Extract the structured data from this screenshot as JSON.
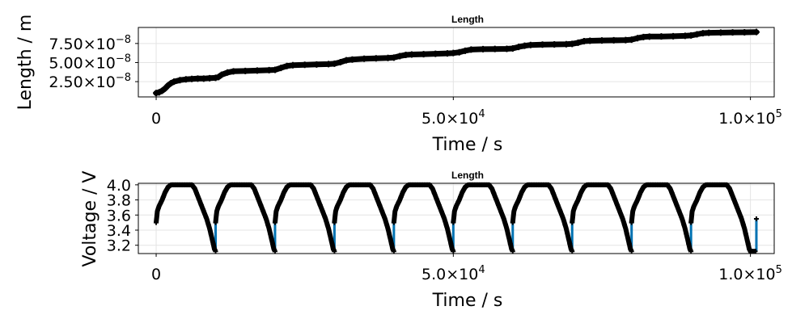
{
  "chart_data": [
    {
      "type": "line",
      "title": "Length",
      "xlabel": "Time / s",
      "ylabel": "Length / m",
      "xlim": [
        -3000,
        104000
      ],
      "ylim": [
        5e-09,
        9.6e-08
      ],
      "x_ticks": [
        0,
        50000,
        100000
      ],
      "x_tick_labels": [
        [
          "0",
          ""
        ],
        [
          "5.0×10",
          "4"
        ],
        [
          "1.0×10",
          "5"
        ]
      ],
      "y_ticks": [
        2.5e-08,
        5e-08,
        7.5e-08
      ],
      "y_tick_labels": [
        [
          "2.50×10",
          "−8"
        ],
        [
          "5.00×10",
          "−8"
        ],
        [
          "7.50×10",
          "−8"
        ]
      ],
      "grid": true,
      "series": [
        {
          "color": "#000000",
          "marker": "plus",
          "x": [
            0,
            500,
            1000,
            1500,
            2000,
            2500,
            3000,
            4000,
            5000,
            6000,
            7000,
            8000,
            9000,
            10000,
            10500,
            11000,
            12000,
            13000,
            15000,
            17000,
            19000,
            20000,
            21000,
            22000,
            23000,
            25000,
            27000,
            29000,
            30000,
            31000,
            32000,
            33000,
            35000,
            37000,
            39000,
            40000,
            41000,
            42000,
            43000,
            45000,
            47000,
            49000,
            50000,
            51000,
            52000,
            53000,
            55000,
            57000,
            59000,
            60000,
            61000,
            62000,
            63000,
            65000,
            67000,
            69000,
            70000,
            71000,
            72000,
            73000,
            75000,
            77000,
            79000,
            80000,
            81000,
            82000,
            83000,
            85000,
            87000,
            89000,
            90000,
            91000,
            92000,
            93000,
            95000,
            97000,
            99000,
            101000
          ],
          "y": [
            1e-08,
            1.1e-08,
            1.3e-08,
            1.6e-08,
            2e-08,
            2.3e-08,
            2.5e-08,
            2.7e-08,
            2.8e-08,
            2.85e-08,
            2.9e-08,
            2.9e-08,
            2.95e-08,
            3e-08,
            3.1e-08,
            3.4e-08,
            3.7e-08,
            3.85e-08,
            3.9e-08,
            3.95e-08,
            4e-08,
            4.05e-08,
            4.3e-08,
            4.55e-08,
            4.65e-08,
            4.7e-08,
            4.75e-08,
            4.8e-08,
            4.85e-08,
            5.05e-08,
            5.3e-08,
            5.4e-08,
            5.5e-08,
            5.55e-08,
            5.6e-08,
            5.65e-08,
            5.85e-08,
            6e-08,
            6.05e-08,
            6.1e-08,
            6.15e-08,
            6.2e-08,
            6.25e-08,
            6.35e-08,
            6.55e-08,
            6.7e-08,
            6.75e-08,
            6.78e-08,
            6.8e-08,
            6.85e-08,
            7.05e-08,
            7.2e-08,
            7.3e-08,
            7.35e-08,
            7.38e-08,
            7.4e-08,
            7.45e-08,
            7.6e-08,
            7.8e-08,
            7.85e-08,
            7.9e-08,
            7.92e-08,
            7.95e-08,
            8e-08,
            8.2e-08,
            8.35e-08,
            8.4e-08,
            8.42e-08,
            8.45e-08,
            8.5e-08,
            8.55e-08,
            8.7e-08,
            8.85e-08,
            8.9e-08,
            8.92e-08,
            8.95e-08,
            8.97e-08,
            9e-08
          ]
        }
      ]
    },
    {
      "type": "line",
      "title": "Length",
      "xlabel": "Time / s",
      "ylabel": "Voltage / V",
      "xlim": [
        -3000,
        104000
      ],
      "ylim": [
        3.09,
        4.02
      ],
      "x_ticks": [
        0,
        50000,
        100000
      ],
      "x_tick_labels": [
        [
          "0",
          ""
        ],
        [
          "5.0×10",
          "4"
        ],
        [
          "1.0×10",
          "5"
        ]
      ],
      "y_ticks": [
        3.2,
        3.4,
        3.6,
        3.8,
        4.0
      ],
      "y_tick_labels": [
        [
          "3.2",
          ""
        ],
        [
          "3.4",
          ""
        ],
        [
          "3.6",
          ""
        ],
        [
          "3.8",
          ""
        ],
        [
          "4.0",
          ""
        ]
      ],
      "grid": true,
      "cycle_period": 10000,
      "cycles": 10,
      "last_cycle_end": 101000,
      "line_color": "#0072b2",
      "marker_color": "#000000",
      "cycle_profile": {
        "t": [
          0,
          200,
          500,
          1000,
          1500,
          2000,
          2500,
          3000,
          5000,
          6000,
          6500,
          7000,
          7500,
          8000,
          8500,
          9000,
          9300,
          9600,
          9800,
          10000
        ],
        "v": [
          3.5,
          3.65,
          3.72,
          3.8,
          3.9,
          3.97,
          4.0,
          4.0,
          4.0,
          4.0,
          3.95,
          3.85,
          3.75,
          3.65,
          3.55,
          3.42,
          3.32,
          3.22,
          3.15,
          3.12
        ]
      }
    }
  ]
}
